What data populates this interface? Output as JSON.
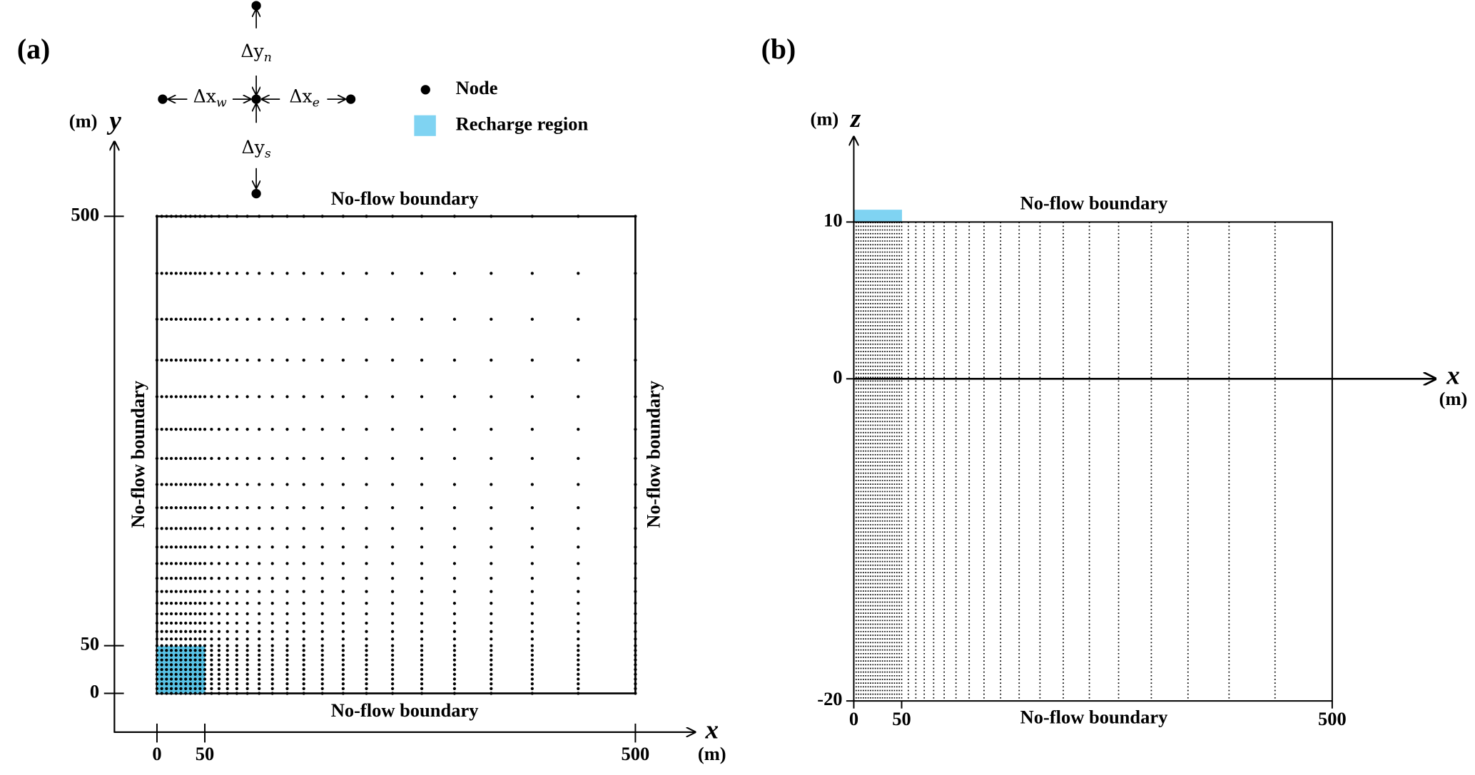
{
  "panels": [
    {
      "label": "(a)",
      "top_boundary": "No-flow boundary",
      "bottom_boundary": "No-flow boundary",
      "left_boundary": "No-flow boundary",
      "right_boundary": "No-flow boundary",
      "x_axis": {
        "unit": "(m)",
        "symbol": "x",
        "ticks": [
          "0",
          "50",
          "500"
        ]
      },
      "y_axis": {
        "unit": "(m)",
        "symbol": "y",
        "ticks": [
          "0",
          "50",
          "500"
        ]
      }
    },
    {
      "label": "(b)",
      "top_boundary": "No-flow boundary",
      "bottom_boundary": "No-flow boundary",
      "x_axis": {
        "unit": "(m)",
        "symbol": "x",
        "ticks": [
          "0",
          "50",
          "500"
        ]
      },
      "z_axis": {
        "unit": "(m)",
        "symbol": "z",
        "ticks": [
          "-20",
          "0",
          "10"
        ]
      }
    }
  ],
  "stencil": {
    "north": {
      "base": "Δy",
      "sub": "n"
    },
    "south": {
      "base": "Δy",
      "sub": "s"
    },
    "west": {
      "base": "Δx",
      "sub": "w"
    },
    "east": {
      "base": "Δx",
      "sub": "e"
    }
  },
  "legend": {
    "node": "Node",
    "recharge": "Recharge region"
  }
}
